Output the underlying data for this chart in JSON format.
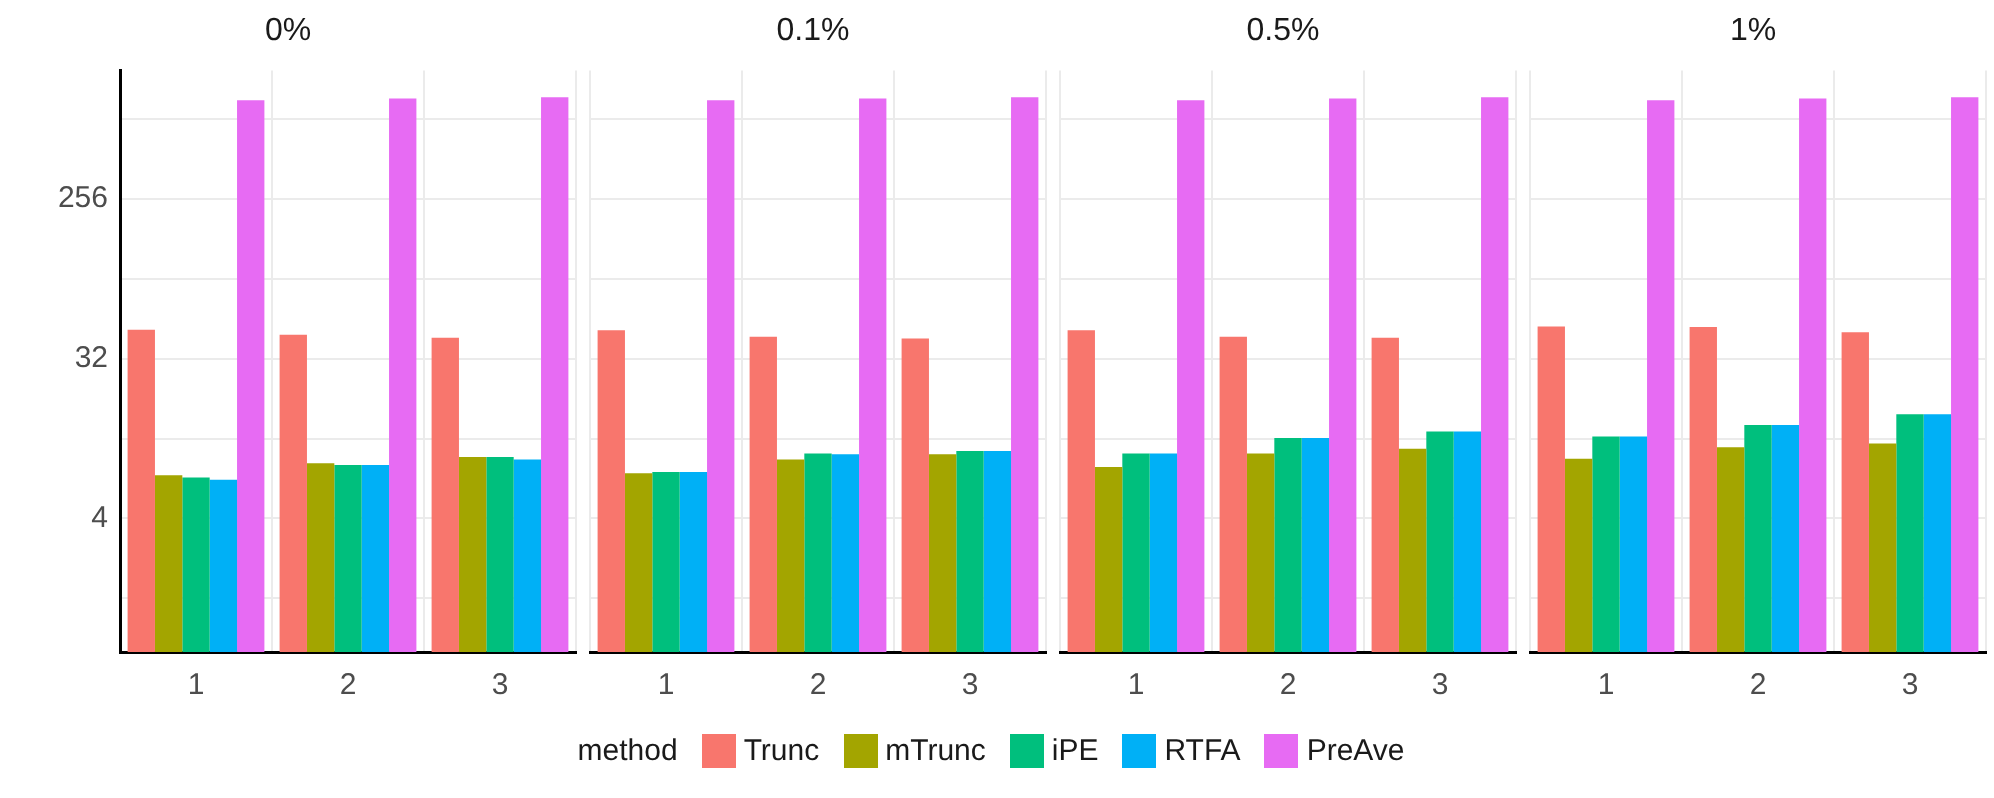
{
  "chart_data": [
    {
      "type": "bar",
      "title": "0%",
      "categories": [
        "1",
        "2",
        "3"
      ],
      "log": "y",
      "ylim": [
        0.72,
        1370
      ],
      "yticks": [
        {
          "value": 1.41,
          "label": null
        },
        4,
        {
          "value": 11.3,
          "label": null
        },
        32,
        {
          "value": 90.5,
          "label": null
        },
        256,
        {
          "value": 724,
          "label": null
        }
      ],
      "grid": true,
      "legend": "bottom",
      "legend_title": "method",
      "series": [
        {
          "name": "Trunc",
          "color": "#f8766d",
          "values": [
            46.7,
            43.7,
            42
          ]
        },
        {
          "name": "mTrunc",
          "color": "#a3a500",
          "values": [
            7.0,
            8.2,
            8.9
          ]
        },
        {
          "name": "iPE",
          "color": "#00bf7d",
          "values": [
            6.8,
            8.0,
            8.9
          ]
        },
        {
          "name": "RTFA",
          "color": "#00b0f6",
          "values": [
            6.6,
            8.0,
            8.6
          ]
        },
        {
          "name": "PreAve",
          "color": "#e76bf3",
          "values": [
            927,
            949,
            966
          ]
        }
      ]
    },
    {
      "type": "bar",
      "title": "0.1%",
      "categories": [
        "1",
        "2",
        "3"
      ],
      "log": "y",
      "ylim": [
        0.72,
        1370
      ],
      "yticks": [
        {
          "value": 1.41,
          "label": null
        },
        4,
        {
          "value": 11.3,
          "label": null
        },
        32,
        {
          "value": 90.5,
          "label": null
        },
        256,
        {
          "value": 724,
          "label": null
        }
      ],
      "grid": true,
      "tick_labels": "x",
      "series": [
        {
          "color": "#f8766d",
          "values": [
            46.3,
            42.6,
            41.6
          ]
        },
        {
          "color": "#a3a500",
          "values": [
            7.2,
            8.6,
            9.2
          ]
        },
        {
          "color": "#00bf7d",
          "values": [
            7.3,
            9.3,
            9.6
          ]
        },
        {
          "color": "#00b0f6",
          "values": [
            7.3,
            9.2,
            9.6
          ]
        },
        {
          "color": "#e76bf3",
          "values": [
            927,
            949,
            966
          ]
        }
      ]
    },
    {
      "type": "bar",
      "title": "0.5%",
      "categories": [
        "1",
        "2",
        "3"
      ],
      "log": "y",
      "ylim": [
        0.72,
        1370
      ],
      "yticks": [
        {
          "value": 1.41,
          "label": null
        },
        4,
        {
          "value": 11.3,
          "label": null
        },
        32,
        {
          "value": 90.5,
          "label": null
        },
        256,
        {
          "value": 724,
          "label": null
        }
      ],
      "grid": true,
      "tick_labels": "x",
      "series": [
        {
          "color": "#f8766d",
          "values": [
            46.3,
            42.6,
            42
          ]
        },
        {
          "color": "#a3a500",
          "values": [
            7.8,
            9.3,
            9.9
          ]
        },
        {
          "color": "#00bf7d",
          "values": [
            9.3,
            11.4,
            12.4
          ]
        },
        {
          "color": "#00b0f6",
          "values": [
            9.3,
            11.4,
            12.4
          ]
        },
        {
          "color": "#e76bf3",
          "values": [
            927,
            949,
            966
          ]
        }
      ]
    },
    {
      "type": "bar",
      "title": "1%",
      "categories": [
        "1",
        "2",
        "3"
      ],
      "log": "y",
      "ylim": [
        0.72,
        1370
      ],
      "yticks": [
        {
          "value": 1.41,
          "label": null
        },
        4,
        {
          "value": 11.3,
          "label": null
        },
        32,
        {
          "value": 90.5,
          "label": null
        },
        256,
        {
          "value": 724,
          "label": null
        }
      ],
      "grid": true,
      "tick_labels": "x",
      "series": [
        {
          "color": "#f8766d",
          "values": [
            48.7,
            48.3,
            45.2
          ]
        },
        {
          "color": "#a3a500",
          "values": [
            8.7,
            10.1,
            10.6
          ]
        },
        {
          "color": "#00bf7d",
          "values": [
            11.6,
            13.5,
            15.5
          ]
        },
        {
          "color": "#00b0f6",
          "values": [
            11.6,
            13.5,
            15.5
          ]
        },
        {
          "color": "#e76bf3",
          "values": [
            927,
            949,
            966
          ]
        }
      ]
    }
  ]
}
